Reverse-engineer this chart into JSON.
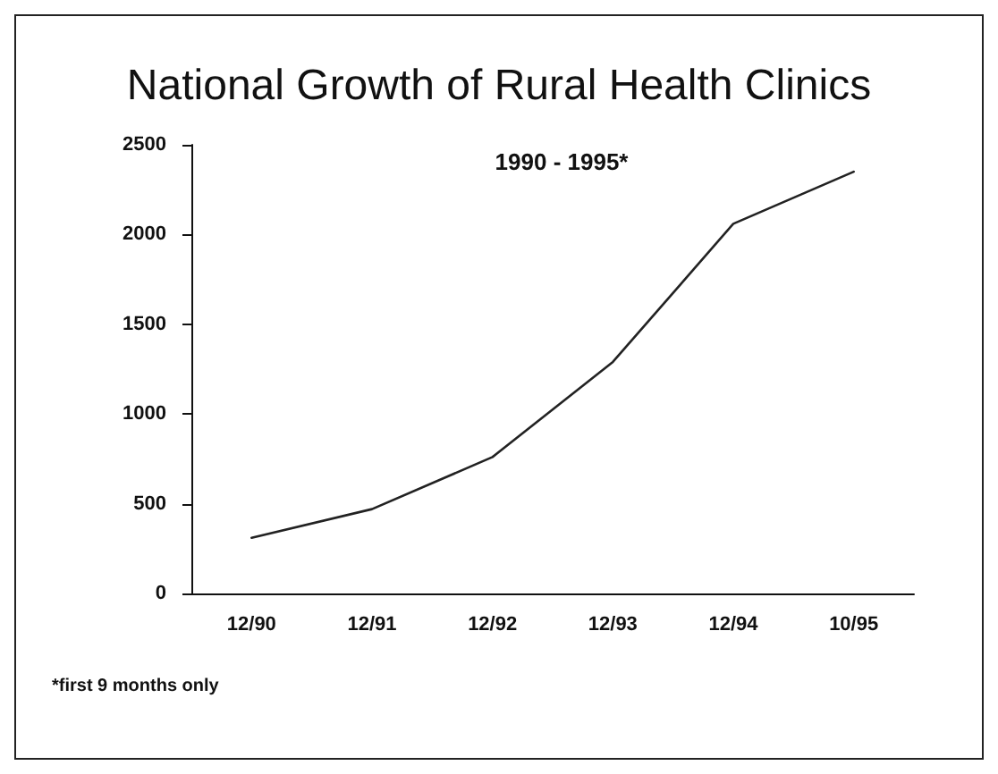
{
  "chart_data": {
    "type": "line",
    "title": "National Growth of Rural Health Clinics",
    "subtitle": "1990 - 1995*",
    "categories": [
      "12/90",
      "12/91",
      "12/92",
      "12/93",
      "12/94",
      "10/95"
    ],
    "series": [
      {
        "color": "#222222",
        "values": [
          310,
          470,
          760,
          1290,
          2060,
          2350
        ]
      }
    ],
    "ylim": [
      0,
      2500
    ],
    "yticks": [
      0,
      500,
      1000,
      1500,
      2000,
      2500
    ],
    "grid": false,
    "marker": "none",
    "line_style": "solid",
    "annotations": [
      "*first 9 months only"
    ]
  }
}
